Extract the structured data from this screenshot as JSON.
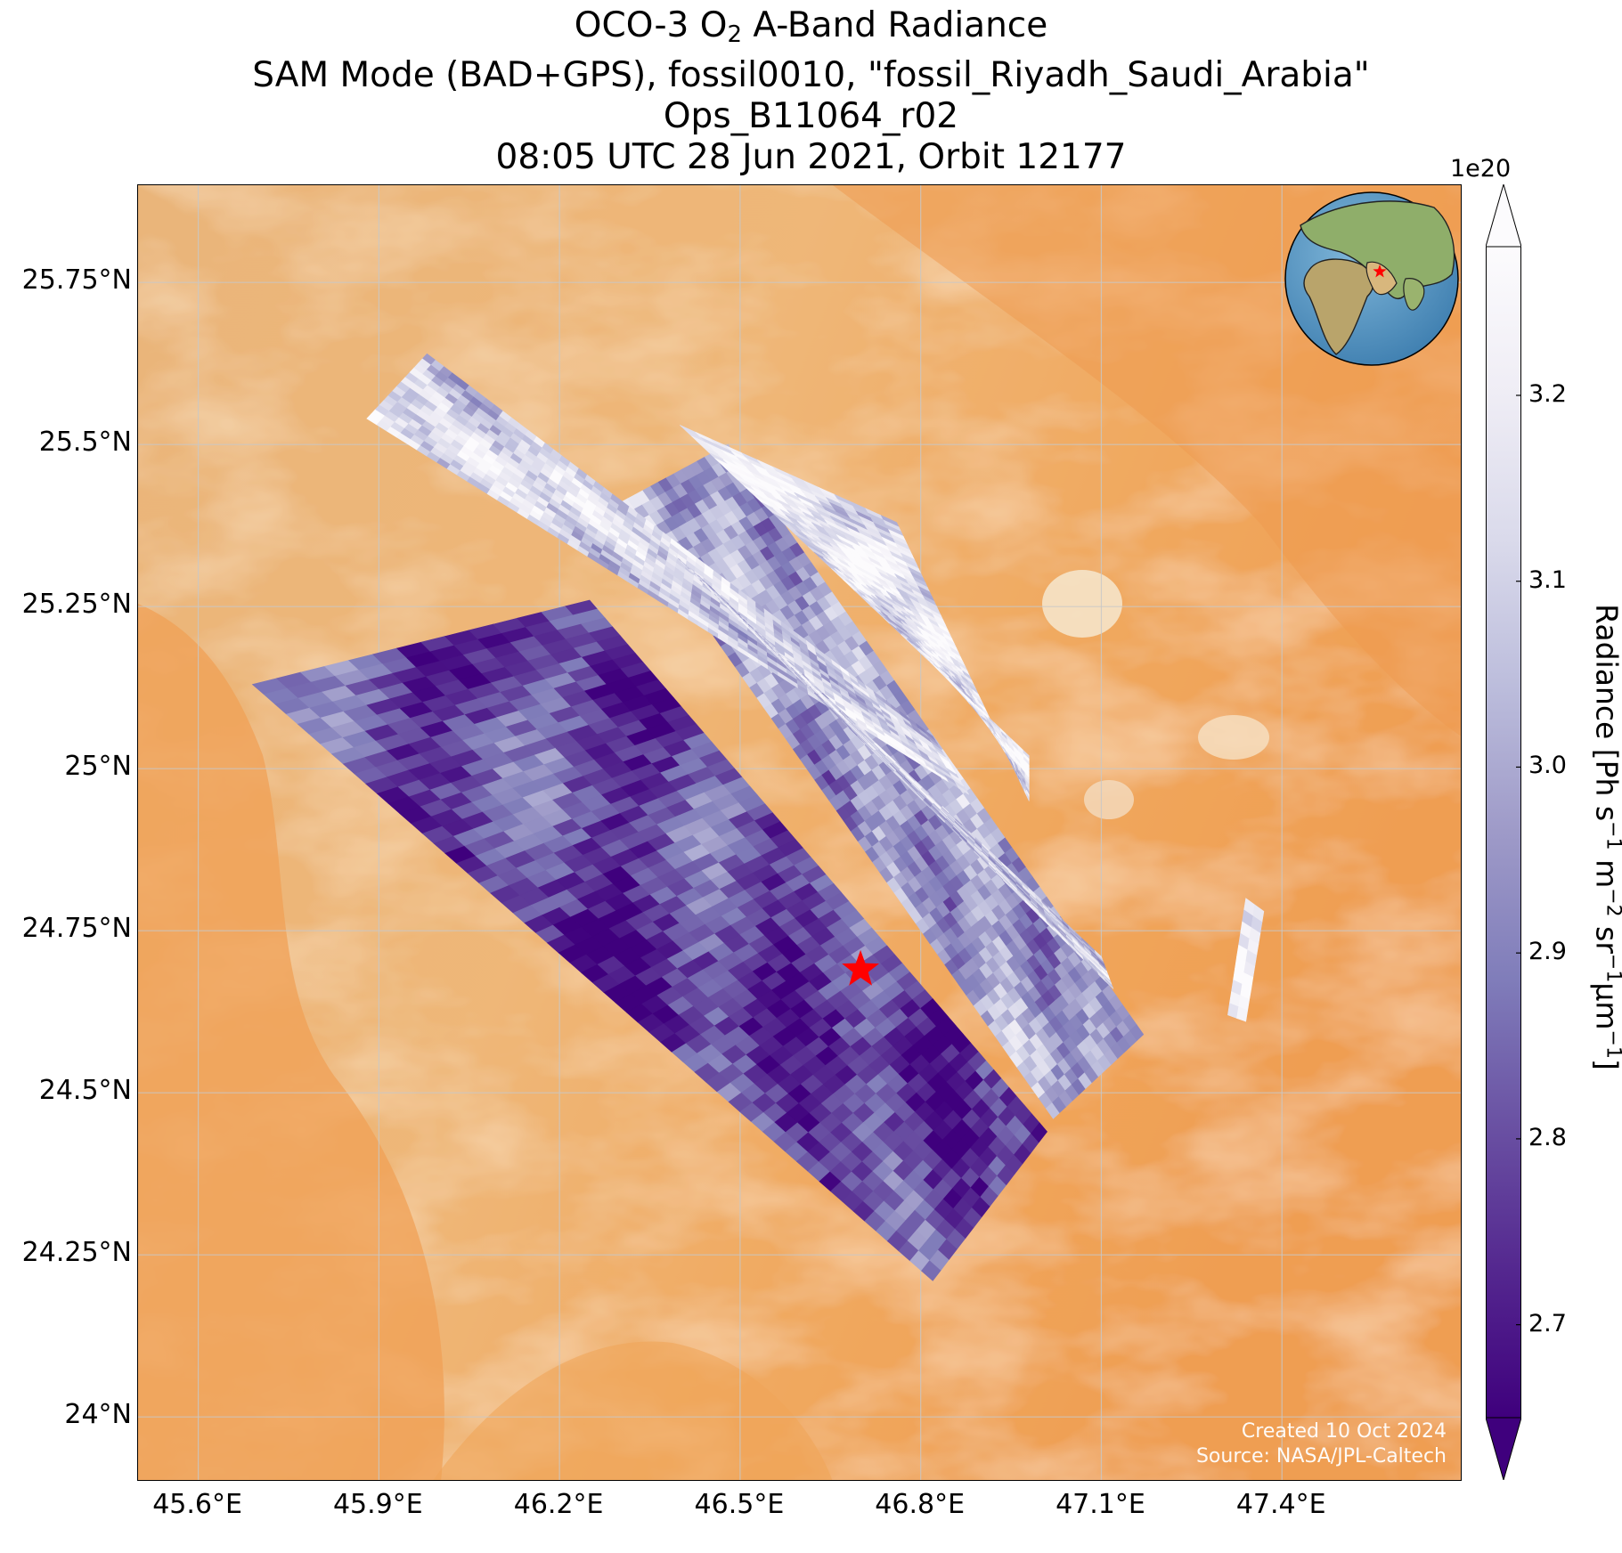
{
  "title": {
    "line1_prefix": "OCO-3 O",
    "line1_sub": "2",
    "line1_suffix": " A-Band Radiance",
    "line2": "SAM Mode (BAD+GPS), fossil0010, \"fossil_Riyadh_Saudi_Arabia\"",
    "line3": "Ops_B11064_r02",
    "line4": "08:05 UTC 28 Jun 2021, Orbit 12177"
  },
  "map": {
    "lon_range": [
      45.5,
      47.7
    ],
    "lat_range": [
      23.9,
      25.9
    ],
    "lat_ticks": [
      {
        "value": 25.75,
        "label": "25.75°N"
      },
      {
        "value": 25.5,
        "label": "25.5°N"
      },
      {
        "value": 25.25,
        "label": "25.25°N"
      },
      {
        "value": 25.0,
        "label": "25°N"
      },
      {
        "value": 24.75,
        "label": "24.75°N"
      },
      {
        "value": 24.5,
        "label": "24.5°N"
      },
      {
        "value": 24.25,
        "label": "24.25°N"
      },
      {
        "value": 24.0,
        "label": "24°N"
      }
    ],
    "lon_ticks": [
      {
        "value": 45.6,
        "label": "45.6°E"
      },
      {
        "value": 45.9,
        "label": "45.9°E"
      },
      {
        "value": 46.2,
        "label": "46.2°E"
      },
      {
        "value": 46.5,
        "label": "46.5°E"
      },
      {
        "value": 46.8,
        "label": "46.8°E"
      },
      {
        "value": 47.1,
        "label": "47.1°E"
      },
      {
        "value": 47.4,
        "label": "47.4°E"
      }
    ],
    "target": {
      "lon": 46.7,
      "lat": 24.69,
      "marker": "red-star-icon",
      "color": "#ff0000"
    },
    "background": "satellite imagery of desert terrain",
    "inset": "globe-icon",
    "swaths": [
      {
        "corners": [
          [
            45.69,
            25.13
          ],
          [
            46.25,
            25.26
          ],
          [
            47.01,
            24.44
          ],
          [
            46.82,
            24.21
          ]
        ],
        "mean": 2.78
      },
      {
        "corners": [
          [
            46.3,
            25.41
          ],
          [
            46.48,
            25.5
          ],
          [
            47.17,
            24.59
          ],
          [
            47.02,
            24.46
          ]
        ],
        "mean": 2.98
      },
      {
        "corners": [
          [
            45.88,
            25.54
          ],
          [
            45.98,
            25.64
          ],
          [
            46.82,
            25.05
          ],
          [
            46.88,
            24.96
          ]
        ],
        "mean": 3.12
      },
      {
        "corners": [
          [
            46.39,
            25.33
          ],
          [
            46.44,
            25.29
          ],
          [
            47.1,
            24.71
          ],
          [
            47.12,
            24.66
          ]
        ],
        "mean": 3.1
      },
      {
        "corners": [
          [
            46.4,
            25.53
          ],
          [
            46.76,
            25.38
          ],
          [
            46.98,
            24.95
          ],
          [
            46.98,
            25.02
          ]
        ],
        "mean": 3.18
      },
      {
        "corners": [
          [
            47.34,
            24.8
          ],
          [
            47.37,
            24.78
          ],
          [
            47.34,
            24.61
          ],
          [
            47.31,
            24.62
          ]
        ],
        "mean": 3.15
      }
    ]
  },
  "credit": {
    "line1": "Created 10 Oct 2024",
    "line2": "Source: NASA/JPL-Caltech"
  },
  "colorbar": {
    "exponent": "1e20",
    "min": 2.65,
    "max": 3.28,
    "ticks": [
      {
        "value": 2.7,
        "label": "2.7"
      },
      {
        "value": 2.8,
        "label": "2.8"
      },
      {
        "value": 2.9,
        "label": "2.9"
      },
      {
        "value": 3.0,
        "label": "3.0"
      },
      {
        "value": 3.1,
        "label": "3.1"
      },
      {
        "value": 3.2,
        "label": "3.2"
      }
    ],
    "label_prefix": "Radiance [Ph s",
    "label_sup1": "−1",
    "label_mid1": " m",
    "label_sup2": "−2",
    "label_mid2": " sr",
    "label_sup3": "−1",
    "label_mid3": "μm",
    "label_sup4": "−1",
    "label_suffix": "]",
    "colormap": [
      "#3f007d",
      "#54278f",
      "#6a51a3",
      "#807dba",
      "#9e9ac8",
      "#bcbddc",
      "#dadaeb",
      "#efedf5",
      "#fcfbfd"
    ]
  }
}
